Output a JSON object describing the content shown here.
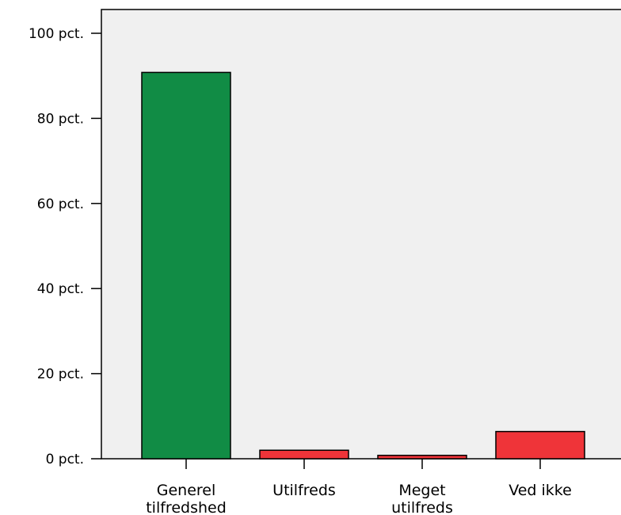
{
  "chart_data": {
    "type": "bar",
    "categories": [
      [
        "Generel",
        "tilfredshed"
      ],
      [
        "Utilfreds"
      ],
      [
        "Meget",
        "utilfreds"
      ],
      [
        "Ved ikke"
      ]
    ],
    "values": [
      90.8,
      2.0,
      0.8,
      6.4
    ],
    "bar_colors": [
      "#118c45",
      "#ef3439",
      "#ef3439",
      "#ef3439"
    ],
    "ylim": [
      0,
      100
    ],
    "yticks": [
      0,
      20,
      40,
      60,
      80,
      100
    ],
    "ytick_labels": [
      "0 pct.",
      "20 pct.",
      "40 pct.",
      "60 pct.",
      "80 pct.",
      "100 pct."
    ],
    "plot_background": "#f0f0f0",
    "grid": false,
    "title": "",
    "xlabel": "",
    "ylabel": ""
  }
}
